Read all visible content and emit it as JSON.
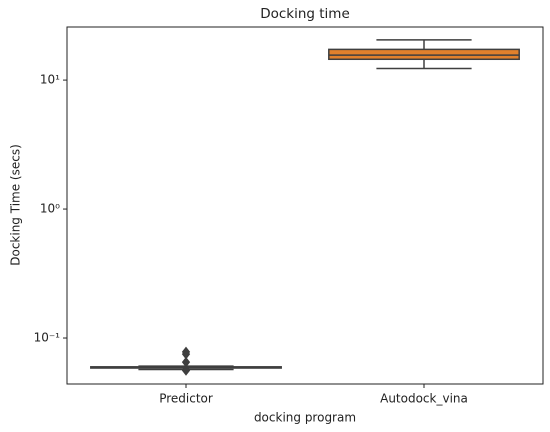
{
  "chart_data": {
    "type": "box",
    "title": "Docking time",
    "xlabel": "docking program",
    "ylabel": "Docking Time (secs)",
    "categories": [
      "Predictor",
      "Autodock_vina"
    ],
    "boxes": [
      {
        "whislo": 0.057,
        "q1": 0.0585,
        "med": 0.059,
        "q3": 0.0598,
        "whishi": 0.0605,
        "fliers": [
          0.078,
          0.075,
          0.065,
          0.0565,
          0.056
        ],
        "color": "#3274a1"
      },
      {
        "whislo": 12.3,
        "q1": 14.5,
        "med": 15.6,
        "q3": 17.3,
        "whishi": 20.5,
        "fliers": [],
        "color": "#e1812c"
      }
    ],
    "yscale": "log",
    "ylim": [
      0.044,
      25.8
    ],
    "yticks": [
      {
        "value": 0.1,
        "label": "10⁻¹"
      },
      {
        "value": 1,
        "label": "10⁰"
      },
      {
        "value": 10,
        "label": "10¹"
      }
    ]
  }
}
